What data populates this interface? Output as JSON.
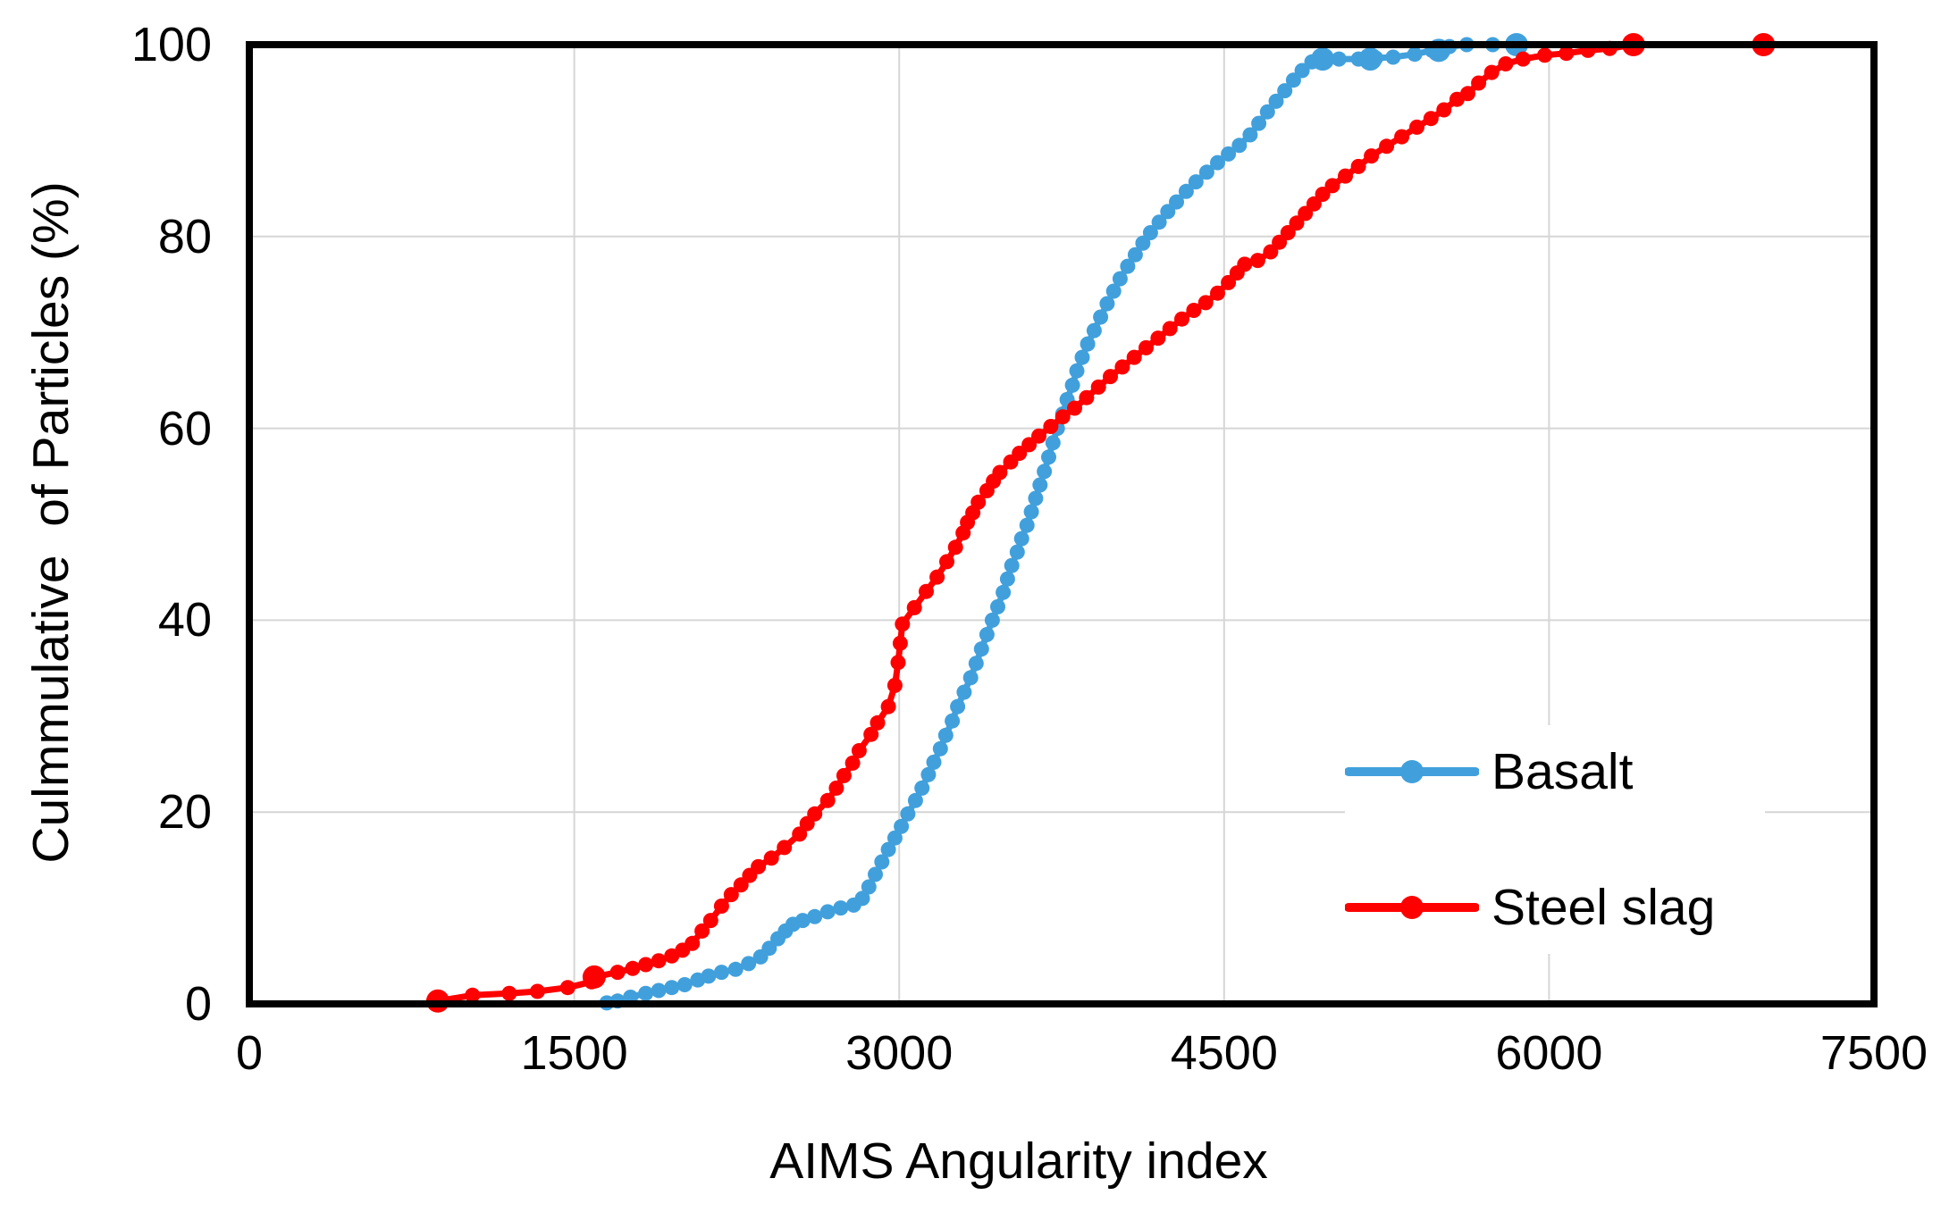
{
  "chart_data": {
    "type": "line",
    "title": "",
    "xlabel": "AIMS Angularity index",
    "ylabel": "Culmmulative  of Particles (%)",
    "xlim": [
      0,
      7500
    ],
    "ylim": [
      0,
      100
    ],
    "xticks": [
      0,
      1500,
      3000,
      4500,
      6000,
      7500
    ],
    "yticks": [
      0,
      20,
      40,
      60,
      80,
      100
    ],
    "grid": true,
    "grid_color": "#D6D6D6",
    "border_color": "#000000",
    "legend_position": "inside-lower-right",
    "series": [
      {
        "name": "Basalt",
        "color": "#41A0DC",
        "points": [
          [
            1650,
            0.1
          ],
          [
            1700,
            0.3
          ],
          [
            1760,
            0.7
          ],
          [
            1830,
            1.1
          ],
          [
            1890,
            1.4
          ],
          [
            1950,
            1.7
          ],
          [
            2010,
            2.0
          ],
          [
            2070,
            2.5
          ],
          [
            2120,
            2.9
          ],
          [
            2180,
            3.3
          ],
          [
            2245,
            3.6
          ],
          [
            2305,
            4.2
          ],
          [
            2360,
            4.9
          ],
          [
            2400,
            5.8
          ],
          [
            2440,
            6.8
          ],
          [
            2475,
            7.6
          ],
          [
            2510,
            8.3
          ],
          [
            2555,
            8.7
          ],
          [
            2610,
            9.1
          ],
          [
            2670,
            9.6
          ],
          [
            2730,
            10.0
          ],
          [
            2790,
            10.3
          ],
          [
            2830,
            11.0
          ],
          [
            2860,
            12.2
          ],
          [
            2890,
            13.5
          ],
          [
            2920,
            14.8
          ],
          [
            2950,
            16.1
          ],
          [
            2980,
            17.3
          ],
          [
            3010,
            18.5
          ],
          [
            3040,
            19.8
          ],
          [
            3075,
            21.2
          ],
          [
            3105,
            22.5
          ],
          [
            3135,
            23.9
          ],
          [
            3160,
            25.2
          ],
          [
            3190,
            26.6
          ],
          [
            3215,
            28.0
          ],
          [
            3245,
            29.5
          ],
          [
            3270,
            31.0
          ],
          [
            3300,
            32.5
          ],
          [
            3330,
            34.0
          ],
          [
            3355,
            35.5
          ],
          [
            3380,
            37.0
          ],
          [
            3405,
            38.5
          ],
          [
            3430,
            40.0
          ],
          [
            3455,
            41.4
          ],
          [
            3480,
            42.9
          ],
          [
            3500,
            44.3
          ],
          [
            3520,
            45.7
          ],
          [
            3545,
            47.1
          ],
          [
            3565,
            48.5
          ],
          [
            3590,
            49.9
          ],
          [
            3610,
            51.3
          ],
          [
            3630,
            52.7
          ],
          [
            3650,
            54.1
          ],
          [
            3670,
            55.5
          ],
          [
            3690,
            57.0
          ],
          [
            3710,
            58.5
          ],
          [
            3730,
            60.0
          ],
          [
            3755,
            61.5
          ],
          [
            3775,
            63.0
          ],
          [
            3800,
            64.5
          ],
          [
            3820,
            66.0
          ],
          [
            3845,
            67.4
          ],
          [
            3870,
            68.8
          ],
          [
            3900,
            70.2
          ],
          [
            3930,
            71.6
          ],
          [
            3960,
            73.0
          ],
          [
            3990,
            74.3
          ],
          [
            4020,
            75.6
          ],
          [
            4055,
            76.9
          ],
          [
            4090,
            78.1
          ],
          [
            4125,
            79.3
          ],
          [
            4160,
            80.4
          ],
          [
            4200,
            81.5
          ],
          [
            4240,
            82.6
          ],
          [
            4280,
            83.6
          ],
          [
            4325,
            84.7
          ],
          [
            4370,
            85.7
          ],
          [
            4420,
            86.7
          ],
          [
            4470,
            87.7
          ],
          [
            4520,
            88.6
          ],
          [
            4570,
            89.5
          ],
          [
            4620,
            90.6
          ],
          [
            4660,
            91.8
          ],
          [
            4700,
            93.0
          ],
          [
            4740,
            94.1
          ],
          [
            4780,
            95.2
          ],
          [
            4820,
            96.3
          ],
          [
            4860,
            97.3
          ],
          [
            4905,
            98.2
          ],
          [
            4955,
            98.5
          ],
          [
            5030,
            98.5
          ],
          [
            5120,
            98.5
          ],
          [
            5200,
            98.6
          ],
          [
            5280,
            98.7
          ],
          [
            5380,
            99.0
          ],
          [
            5460,
            99.4
          ],
          [
            5540,
            99.8
          ],
          [
            5620,
            100
          ],
          [
            5740,
            100
          ],
          [
            5850,
            100
          ]
        ],
        "emphasis_points": [
          [
            4955,
            98.5
          ],
          [
            5175,
            98.5
          ],
          [
            5491,
            99.4
          ],
          [
            5850,
            100
          ]
        ]
      },
      {
        "name": "Steel slag",
        "color": "#FF0000",
        "points": [
          [
            870,
            0.3
          ],
          [
            1030,
            0.9
          ],
          [
            1200,
            1.1
          ],
          [
            1330,
            1.3
          ],
          [
            1470,
            1.7
          ],
          [
            1580,
            2.3
          ],
          [
            1592,
            2.8
          ],
          [
            1700,
            3.3
          ],
          [
            1770,
            3.7
          ],
          [
            1830,
            4.1
          ],
          [
            1890,
            4.5
          ],
          [
            1950,
            5.0
          ],
          [
            2000,
            5.6
          ],
          [
            2045,
            6.3
          ],
          [
            2090,
            7.6
          ],
          [
            2130,
            8.7
          ],
          [
            2180,
            10.2
          ],
          [
            2225,
            11.4
          ],
          [
            2270,
            12.4
          ],
          [
            2310,
            13.4
          ],
          [
            2350,
            14.3
          ],
          [
            2410,
            15.2
          ],
          [
            2470,
            16.3
          ],
          [
            2540,
            17.7
          ],
          [
            2575,
            18.8
          ],
          [
            2610,
            19.8
          ],
          [
            2670,
            21.2
          ],
          [
            2710,
            22.5
          ],
          [
            2745,
            23.8
          ],
          [
            2785,
            25.1
          ],
          [
            2815,
            26.4
          ],
          [
            2870,
            28.1
          ],
          [
            2900,
            29.3
          ],
          [
            2950,
            31.0
          ],
          [
            2980,
            33.2
          ],
          [
            2995,
            35.6
          ],
          [
            3005,
            37.6
          ],
          [
            3015,
            39.6
          ],
          [
            3070,
            41.3
          ],
          [
            3125,
            43.0
          ],
          [
            3175,
            44.5
          ],
          [
            3220,
            46.1
          ],
          [
            3260,
            47.6
          ],
          [
            3295,
            49.1
          ],
          [
            3315,
            50.2
          ],
          [
            3340,
            51.2
          ],
          [
            3365,
            52.3
          ],
          [
            3405,
            53.5
          ],
          [
            3435,
            54.5
          ],
          [
            3465,
            55.4
          ],
          [
            3515,
            56.5
          ],
          [
            3555,
            57.4
          ],
          [
            3600,
            58.3
          ],
          [
            3645,
            59.2
          ],
          [
            3700,
            60.2
          ],
          [
            3755,
            61.2
          ],
          [
            3810,
            62.1
          ],
          [
            3865,
            63.2
          ],
          [
            3920,
            64.3
          ],
          [
            3975,
            65.4
          ],
          [
            4030,
            66.4
          ],
          [
            4085,
            67.4
          ],
          [
            4140,
            68.4
          ],
          [
            4195,
            69.4
          ],
          [
            4250,
            70.4
          ],
          [
            4305,
            71.4
          ],
          [
            4360,
            72.3
          ],
          [
            4415,
            73.1
          ],
          [
            4470,
            74.1
          ],
          [
            4520,
            75.2
          ],
          [
            4560,
            76.2
          ],
          [
            4595,
            77.1
          ],
          [
            4655,
            77.5
          ],
          [
            4715,
            78.4
          ],
          [
            4755,
            79.4
          ],
          [
            4795,
            80.4
          ],
          [
            4835,
            81.4
          ],
          [
            4875,
            82.4
          ],
          [
            4915,
            83.4
          ],
          [
            4955,
            84.4
          ],
          [
            5000,
            85.3
          ],
          [
            5060,
            86.3
          ],
          [
            5120,
            87.3
          ],
          [
            5180,
            88.4
          ],
          [
            5250,
            89.4
          ],
          [
            5320,
            90.4
          ],
          [
            5390,
            91.4
          ],
          [
            5455,
            92.3
          ],
          [
            5515,
            93.2
          ],
          [
            5575,
            94.3
          ],
          [
            5625,
            94.9
          ],
          [
            5675,
            96.0
          ],
          [
            5735,
            97.1
          ],
          [
            5800,
            98.0
          ],
          [
            5880,
            98.5
          ],
          [
            5980,
            98.9
          ],
          [
            6080,
            99.1
          ],
          [
            6180,
            99.4
          ],
          [
            6280,
            99.6
          ],
          [
            6390,
            100
          ],
          [
            6990,
            100
          ]
        ],
        "emphasis_points": [
          [
            870,
            0.3
          ],
          [
            1592,
            2.8
          ],
          [
            6390,
            100
          ],
          [
            6990,
            100
          ]
        ]
      }
    ]
  }
}
